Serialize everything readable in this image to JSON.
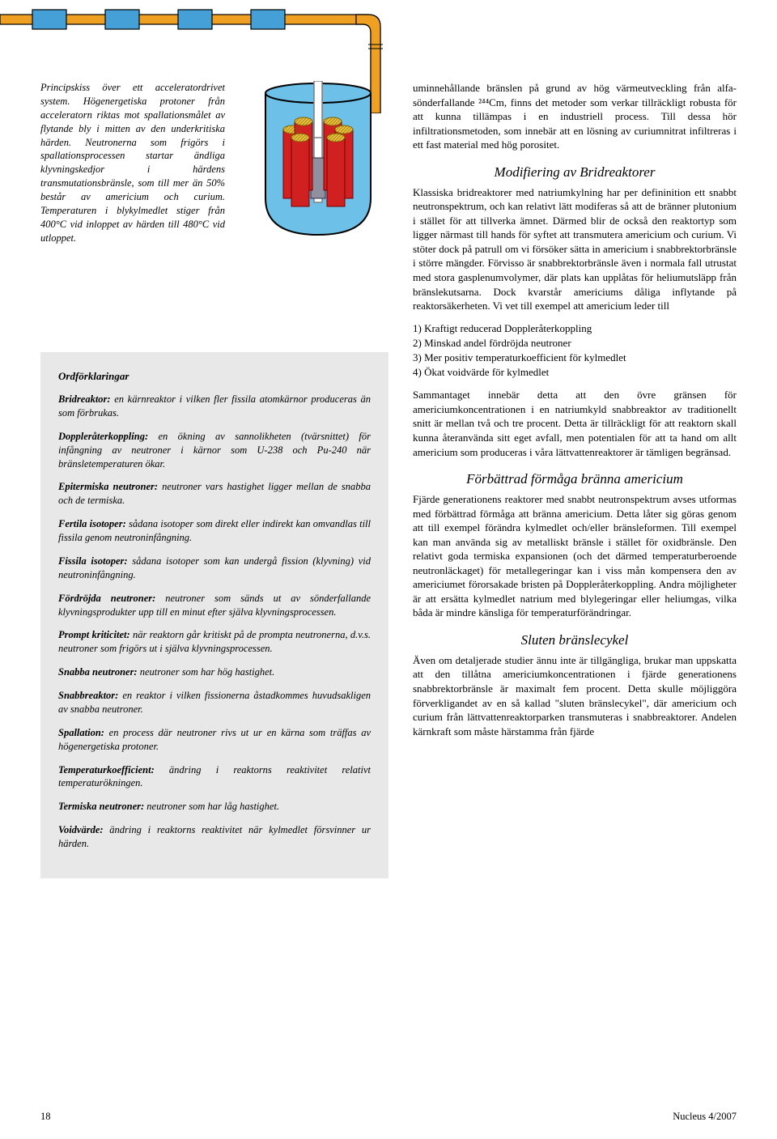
{
  "diagram": {
    "accelerator": {
      "pipe_fill": "#f0a020",
      "pipe_stroke": "#000000",
      "segment_fill": "#46a0d8",
      "bg": "#ffffff"
    },
    "reactor": {
      "vessel_fill": "#6dc0e8",
      "vessel_stroke": "#000000",
      "rod_fill": "#ffffff",
      "rod_stroke": "#808080",
      "fuel_fill": "#d02020",
      "fuel_top": "#e8c040",
      "lead_fill": "#808080"
    }
  },
  "caption": "Principskiss över ett acceleratordrivet system. Högenergetiska protoner från acceleratorn riktas mot spallationsmålet av flytande bly i mitten av den underkritiska härden. Neutronerna som frigörs i spallationsprocessen startar ändliga klyvningskedjor i härdens transmutationsbränsle, som till mer än 50% består av americium och curium. Temperaturen i blykylmedlet stiger från 400°C vid inloppet av härden till 480°C vid utloppet.",
  "glossary": {
    "title": "Ordförklaringar",
    "items": [
      {
        "term": "Bridreaktor:",
        "def": " en kärnreaktor i vilken fler fissila atomkärnor produceras än som förbrukas."
      },
      {
        "term": "Doppleråterkoppling:",
        "def": " en ökning av sannolikheten (tvärsnittet) för infångning av neutroner i kärnor som U-238 och Pu-240 när bränsletemperaturen ökar."
      },
      {
        "term": "Epitermiska neutroner:",
        "def": " neutroner vars hastighet ligger mellan de snabba och de termiska."
      },
      {
        "term": "Fertila isotoper:",
        "def": " sådana isotoper som direkt eller indirekt kan omvandlas till fissila genom neutroninfångning."
      },
      {
        "term": "Fissila isotoper:",
        "def": " sådana isotoper som kan undergå fission (klyvning) vid neutroninfångning."
      },
      {
        "term": "Fördröjda neutroner:",
        "def": " neutroner som sänds ut av sönderfallande klyvningsprodukter upp till en minut efter själva klyvningsprocessen."
      },
      {
        "term": "Prompt kriticitet:",
        "def": " när reaktorn går kritiskt på de prompta neutronerna, d.v.s. neutroner som frigörs ut i själva klyvningsprocessen."
      },
      {
        "term": "Snabba neutroner:",
        "def": " neutroner som har hög hastighet."
      },
      {
        "term": "Snabbreaktor:",
        "def": " en reaktor i vilken fissionerna åstadkommes huvudsakligen av snabba neutroner."
      },
      {
        "term": "Spallation:",
        "def": " en process där neutroner rivs ut ur en kärna som träffas av högenergetiska protoner."
      },
      {
        "term": "Temperaturkoefficient:",
        "def": " ändring i reaktorns reaktivitet relativt temperaturökningen."
      },
      {
        "term": "Termiska neutroner:",
        "def": " neutroner som har låg hastighet."
      },
      {
        "term": "Voidvärde:",
        "def": " ändring i reaktorns reaktivitet när kylmedlet försvinner ur härden."
      }
    ]
  },
  "right": {
    "intro": "uminnehållande bränslen på grund av hög värmeutveckling från alfa-sönderfallande ²⁴⁴Cm, finns det metoder som verkar tillräckligt robusta för att kunna tillämpas i en industriell process. Till dessa hör infiltrationsmetoden, som innebär att en lösning av curiumnitrat infiltreras i ett fast material med hög porositet.",
    "sections": [
      {
        "heading": "Modifiering av Bridreaktorer",
        "paras": [
          "Klassiska bridreaktorer med natriumkylning har per defininition ett snabbt neutronspektrum, och kan relativt lätt modiferas så att de bränner plutonium i stället för att tillverka ämnet. Därmed blir de också den reaktortyp som ligger närmast till hands för syftet att transmutera americium och curium. Vi stöter dock på patrull om vi försöker sätta in americium i snabbrektorbränsle i större mängder. Förvisso är snabbrektorbränsle även i normala fall utrustat med stora gasplenumvolymer, där plats kan upplåtas för heliumutsläpp från bränslekutsarna. Dock kvarstår americiums dåliga inflytande på reaktorsäkerheten. Vi vet till exempel att americium leder till"
        ],
        "list": [
          "1) Kraftigt reducerad Doppleråterkoppling",
          "2) Minskad andel fördröjda neutroner",
          "3) Mer positiv temperaturkoefficient för kylmedlet",
          "4) Ökat voidvärde för kylmedlet"
        ],
        "paras_after": [
          "Sammantaget innebär detta att den övre gränsen för americiumkoncentrationen i en natriumkyld snabbreaktor av traditionellt snitt är mellan två och tre procent. Detta är tillräckligt för att reaktorn skall kunna återanvända sitt eget avfall, men potentialen för att ta hand om allt americium som produceras i våra lättvattenreaktorer är tämligen begränsad."
        ]
      },
      {
        "heading": "Förbättrad förmåga bränna americium",
        "paras": [
          "Fjärde generationens reaktorer med snabbt neutronspektrum avses utformas med förbättrad förmåga att bränna americium. Detta låter sig göras genom att till exempel förändra kylmedlet och/eller bränsleformen. Till exempel kan man använda sig av metalliskt bränsle i stället för oxidbränsle. Den relativt goda termiska expansionen (och det därmed temperaturberoende neutronläckaget) för metallegeringar kan i viss mån kompensera den av americiumet förorsakade bristen på Doppleråterkoppling. Andra möjligheter är att ersätta kylmedlet natrium med blylegeringar eller heliumgas, vilka båda är mindre känsliga för temperaturförändringar."
        ]
      },
      {
        "heading": "Sluten bränslecykel",
        "paras": [
          "Även om detaljerade studier ännu inte är tillgängliga, brukar man uppskatta att den tillåtna americiumkoncentrationen i fjärde generationens snabbrektorbränsle är maximalt fem procent. Detta skulle möjliggöra förverkligandet av en så kallad \"sluten bränslecykel\", där americium och curium från lättvattenreaktorparken transmuteras i snabbreaktorer. Andelen kärnkraft som måste härstamma från fjärde"
        ]
      }
    ]
  },
  "footer": {
    "page": "18",
    "right": "Nucleus 4/2007"
  }
}
